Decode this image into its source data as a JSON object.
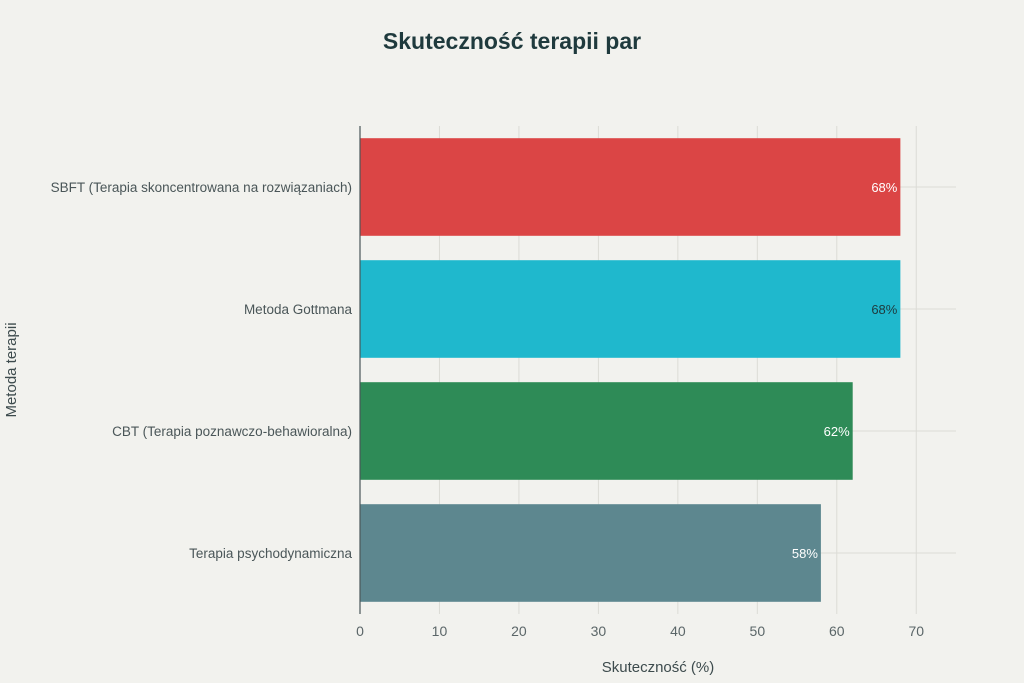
{
  "chart_data": {
    "type": "bar",
    "orientation": "horizontal",
    "title": "Skuteczność terapii par",
    "xlabel": "Skuteczność (%)",
    "ylabel": "Metoda terapii",
    "xlim": [
      0,
      75
    ],
    "xticks": [
      0,
      10,
      20,
      30,
      40,
      50,
      60,
      70
    ],
    "grid": true,
    "categories": [
      "SBFT (Terapia skoncentrowana na rozwiązaniach)",
      "Metoda Gottmana",
      "CBT (Terapia poznawczo-behawioralna)",
      "Terapia psychodynamiczna"
    ],
    "values": [
      68,
      68,
      62,
      58
    ],
    "data_labels": [
      "68%",
      "68%",
      "62%",
      "58%"
    ],
    "colors": [
      "#db4545",
      "#1fb8cd",
      "#2e8b57",
      "#5d878f"
    ],
    "label_colors": [
      "#ffffff",
      "#1f3a3d",
      "#ffffff",
      "#ffffff"
    ]
  }
}
